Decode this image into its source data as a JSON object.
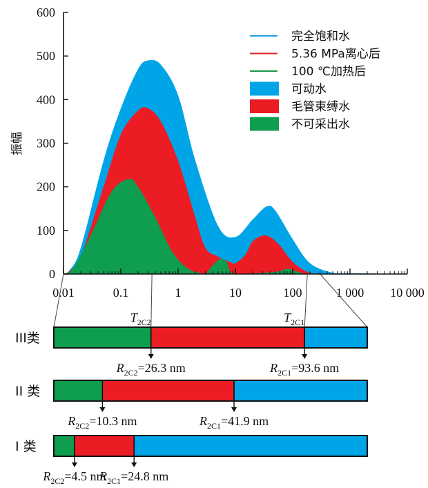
{
  "chart_data": {
    "type": "area",
    "ylabel": "振幅",
    "xscale": "log",
    "xlim": [
      0.01,
      10000
    ],
    "ylim": [
      0,
      600
    ],
    "yticks": [
      "0",
      "100",
      "200",
      "300",
      "400",
      "500",
      "600"
    ],
    "xticks": [
      {
        "value": 0.01,
        "label": "0.01"
      },
      {
        "value": 0.1,
        "label": "0.1"
      },
      {
        "value": 1,
        "label": "1"
      },
      {
        "value": 10,
        "label": "10"
      },
      {
        "value": 100,
        "label": "100"
      },
      {
        "value": 1000,
        "label": "1 000"
      },
      {
        "value": 10000,
        "label": "10 000"
      }
    ],
    "legend_position": "top-right",
    "legend": [
      {
        "kind": "line",
        "label": "完全饱和水",
        "color": "#1aa3e0"
      },
      {
        "kind": "line",
        "label": "5.36 MPa离心后",
        "color": "#e61f24"
      },
      {
        "kind": "line",
        "label": "100 ℃加热后",
        "color": "#1a9a48"
      },
      {
        "kind": "patch",
        "label": "可动水",
        "color": "#00a5e8"
      },
      {
        "kind": "patch",
        "label": "毛管束缚水",
        "color": "#ec1c24"
      },
      {
        "kind": "patch",
        "label": "不可采出水",
        "color": "#0f9d4f"
      }
    ],
    "series": [
      {
        "name": "完全饱和水",
        "color": "#00a5e8",
        "points": [
          [
            0.01,
            0
          ],
          [
            0.013,
            10
          ],
          [
            0.02,
            60
          ],
          [
            0.05,
            260
          ],
          [
            0.1,
            380
          ],
          [
            0.2,
            470
          ],
          [
            0.3,
            490
          ],
          [
            0.5,
            480
          ],
          [
            1,
            410
          ],
          [
            2,
            260
          ],
          [
            5,
            110
          ],
          [
            10,
            85
          ],
          [
            20,
            125
          ],
          [
            35,
            155
          ],
          [
            50,
            145
          ],
          [
            100,
            80
          ],
          [
            200,
            25
          ],
          [
            500,
            3
          ],
          [
            1000,
            2
          ],
          [
            3000,
            1
          ],
          [
            3500,
            0
          ]
        ]
      },
      {
        "name": "5.36 MPa离心后",
        "color": "#ec1c24",
        "points": [
          [
            0.01,
            0
          ],
          [
            0.013,
            8
          ],
          [
            0.02,
            40
          ],
          [
            0.05,
            200
          ],
          [
            0.1,
            320
          ],
          [
            0.2,
            375
          ],
          [
            0.3,
            380
          ],
          [
            0.5,
            350
          ],
          [
            1,
            260
          ],
          [
            2,
            130
          ],
          [
            3,
            60
          ],
          [
            5,
            40
          ],
          [
            8,
            28
          ],
          [
            10,
            25
          ],
          [
            15,
            45
          ],
          [
            20,
            75
          ],
          [
            30,
            88
          ],
          [
            40,
            85
          ],
          [
            60,
            65
          ],
          [
            100,
            28
          ],
          [
            180,
            5
          ],
          [
            300,
            1
          ],
          [
            1000,
            1
          ],
          [
            2500,
            1
          ],
          [
            2600,
            0
          ]
        ]
      },
      {
        "name": "100 ℃加热后",
        "color": "#0f9d4f",
        "points": [
          [
            0.01,
            0
          ],
          [
            0.015,
            15
          ],
          [
            0.03,
            90
          ],
          [
            0.07,
            190
          ],
          [
            0.14,
            218
          ],
          [
            0.2,
            200
          ],
          [
            0.4,
            130
          ],
          [
            0.8,
            50
          ],
          [
            1.5,
            12
          ],
          [
            2.5,
            2
          ],
          [
            3,
            0
          ],
          [
            4,
            20
          ],
          [
            5.5,
            35
          ],
          [
            7,
            28
          ],
          [
            10,
            0
          ],
          [
            50,
            5
          ],
          [
            80,
            12
          ],
          [
            110,
            7
          ],
          [
            170,
            0
          ]
        ]
      }
    ]
  },
  "classes": [
    {
      "name": "III类",
      "t2c2_label": "T2C2",
      "t2c1_label": "T2C1",
      "t2c2_value": 0.35,
      "t2c1_value": 180,
      "r2c2_text": "=26.3 nm",
      "r2c1_text": "=93.6 nm",
      "segments": [
        {
          "name": "不可采出水",
          "fraction": 0.31,
          "color": "#0f9d4f"
        },
        {
          "name": "毛管束缚水",
          "fraction": 0.49,
          "color": "#ec1c24"
        },
        {
          "name": "可动水",
          "fraction": 0.2,
          "color": "#00a5e8"
        }
      ]
    },
    {
      "name": "II 类",
      "r2c2_text": "=10.3 nm",
      "r2c1_text": "=41.9 nm",
      "segments": [
        {
          "name": "不可采出水",
          "fraction": 0.155,
          "color": "#0f9d4f"
        },
        {
          "name": "毛管束缚水",
          "fraction": 0.42,
          "color": "#ec1c24"
        },
        {
          "name": "可动水",
          "fraction": 0.425,
          "color": "#00a5e8"
        }
      ]
    },
    {
      "name": "I 类",
      "r2c2_text": "=4.5 nm",
      "r2c1_text": "=24.8 nm",
      "segments": [
        {
          "name": "不可采出水",
          "fraction": 0.066,
          "color": "#0f9d4f"
        },
        {
          "name": "毛管束缚水",
          "fraction": 0.19,
          "color": "#ec1c24"
        },
        {
          "name": "可动水",
          "fraction": 0.744,
          "color": "#00a5e8"
        }
      ]
    }
  ],
  "symbols": {
    "R": "R",
    "T": "T",
    "sub_c2": "2C2",
    "sub_c1": "2C1"
  }
}
